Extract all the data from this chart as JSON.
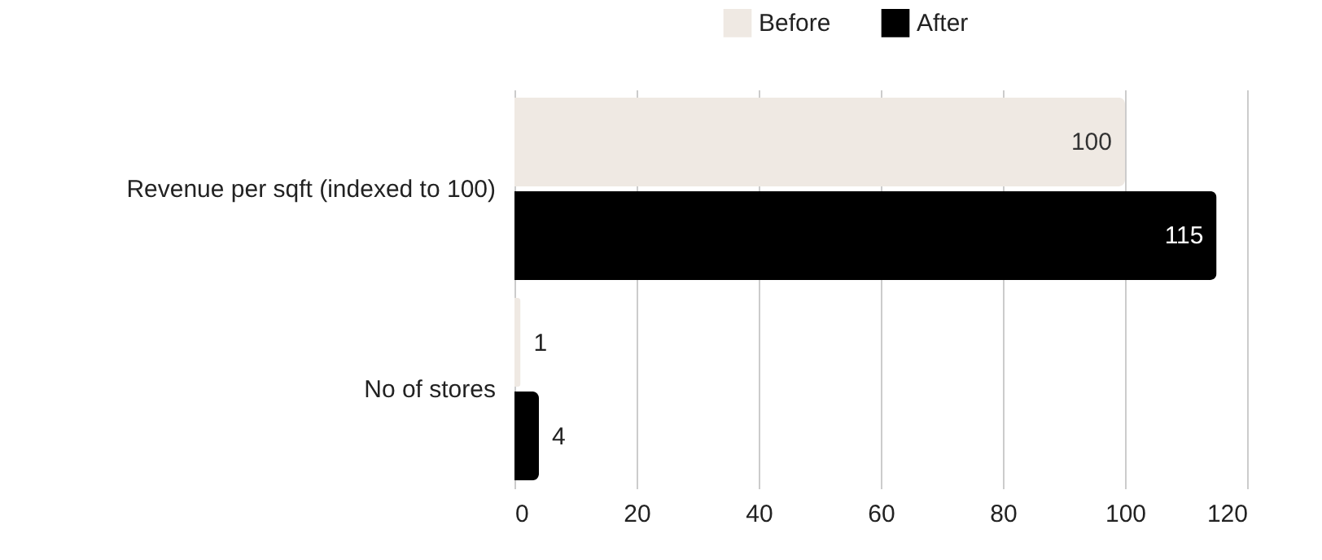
{
  "chart_data": {
    "type": "bar",
    "orientation": "horizontal",
    "categories": [
      "Revenue per sqft (indexed to 100)",
      "No of stores"
    ],
    "series": [
      {
        "name": "Before",
        "color": "#efe9e3",
        "values": [
          100,
          1
        ]
      },
      {
        "name": "After",
        "color": "#000000",
        "values": [
          115,
          4
        ]
      }
    ],
    "xlim": [
      0,
      120
    ],
    "xticks": [
      0,
      20,
      40,
      60,
      80,
      100,
      120
    ],
    "grid": "x",
    "legend": "top",
    "data_labels": true
  }
}
